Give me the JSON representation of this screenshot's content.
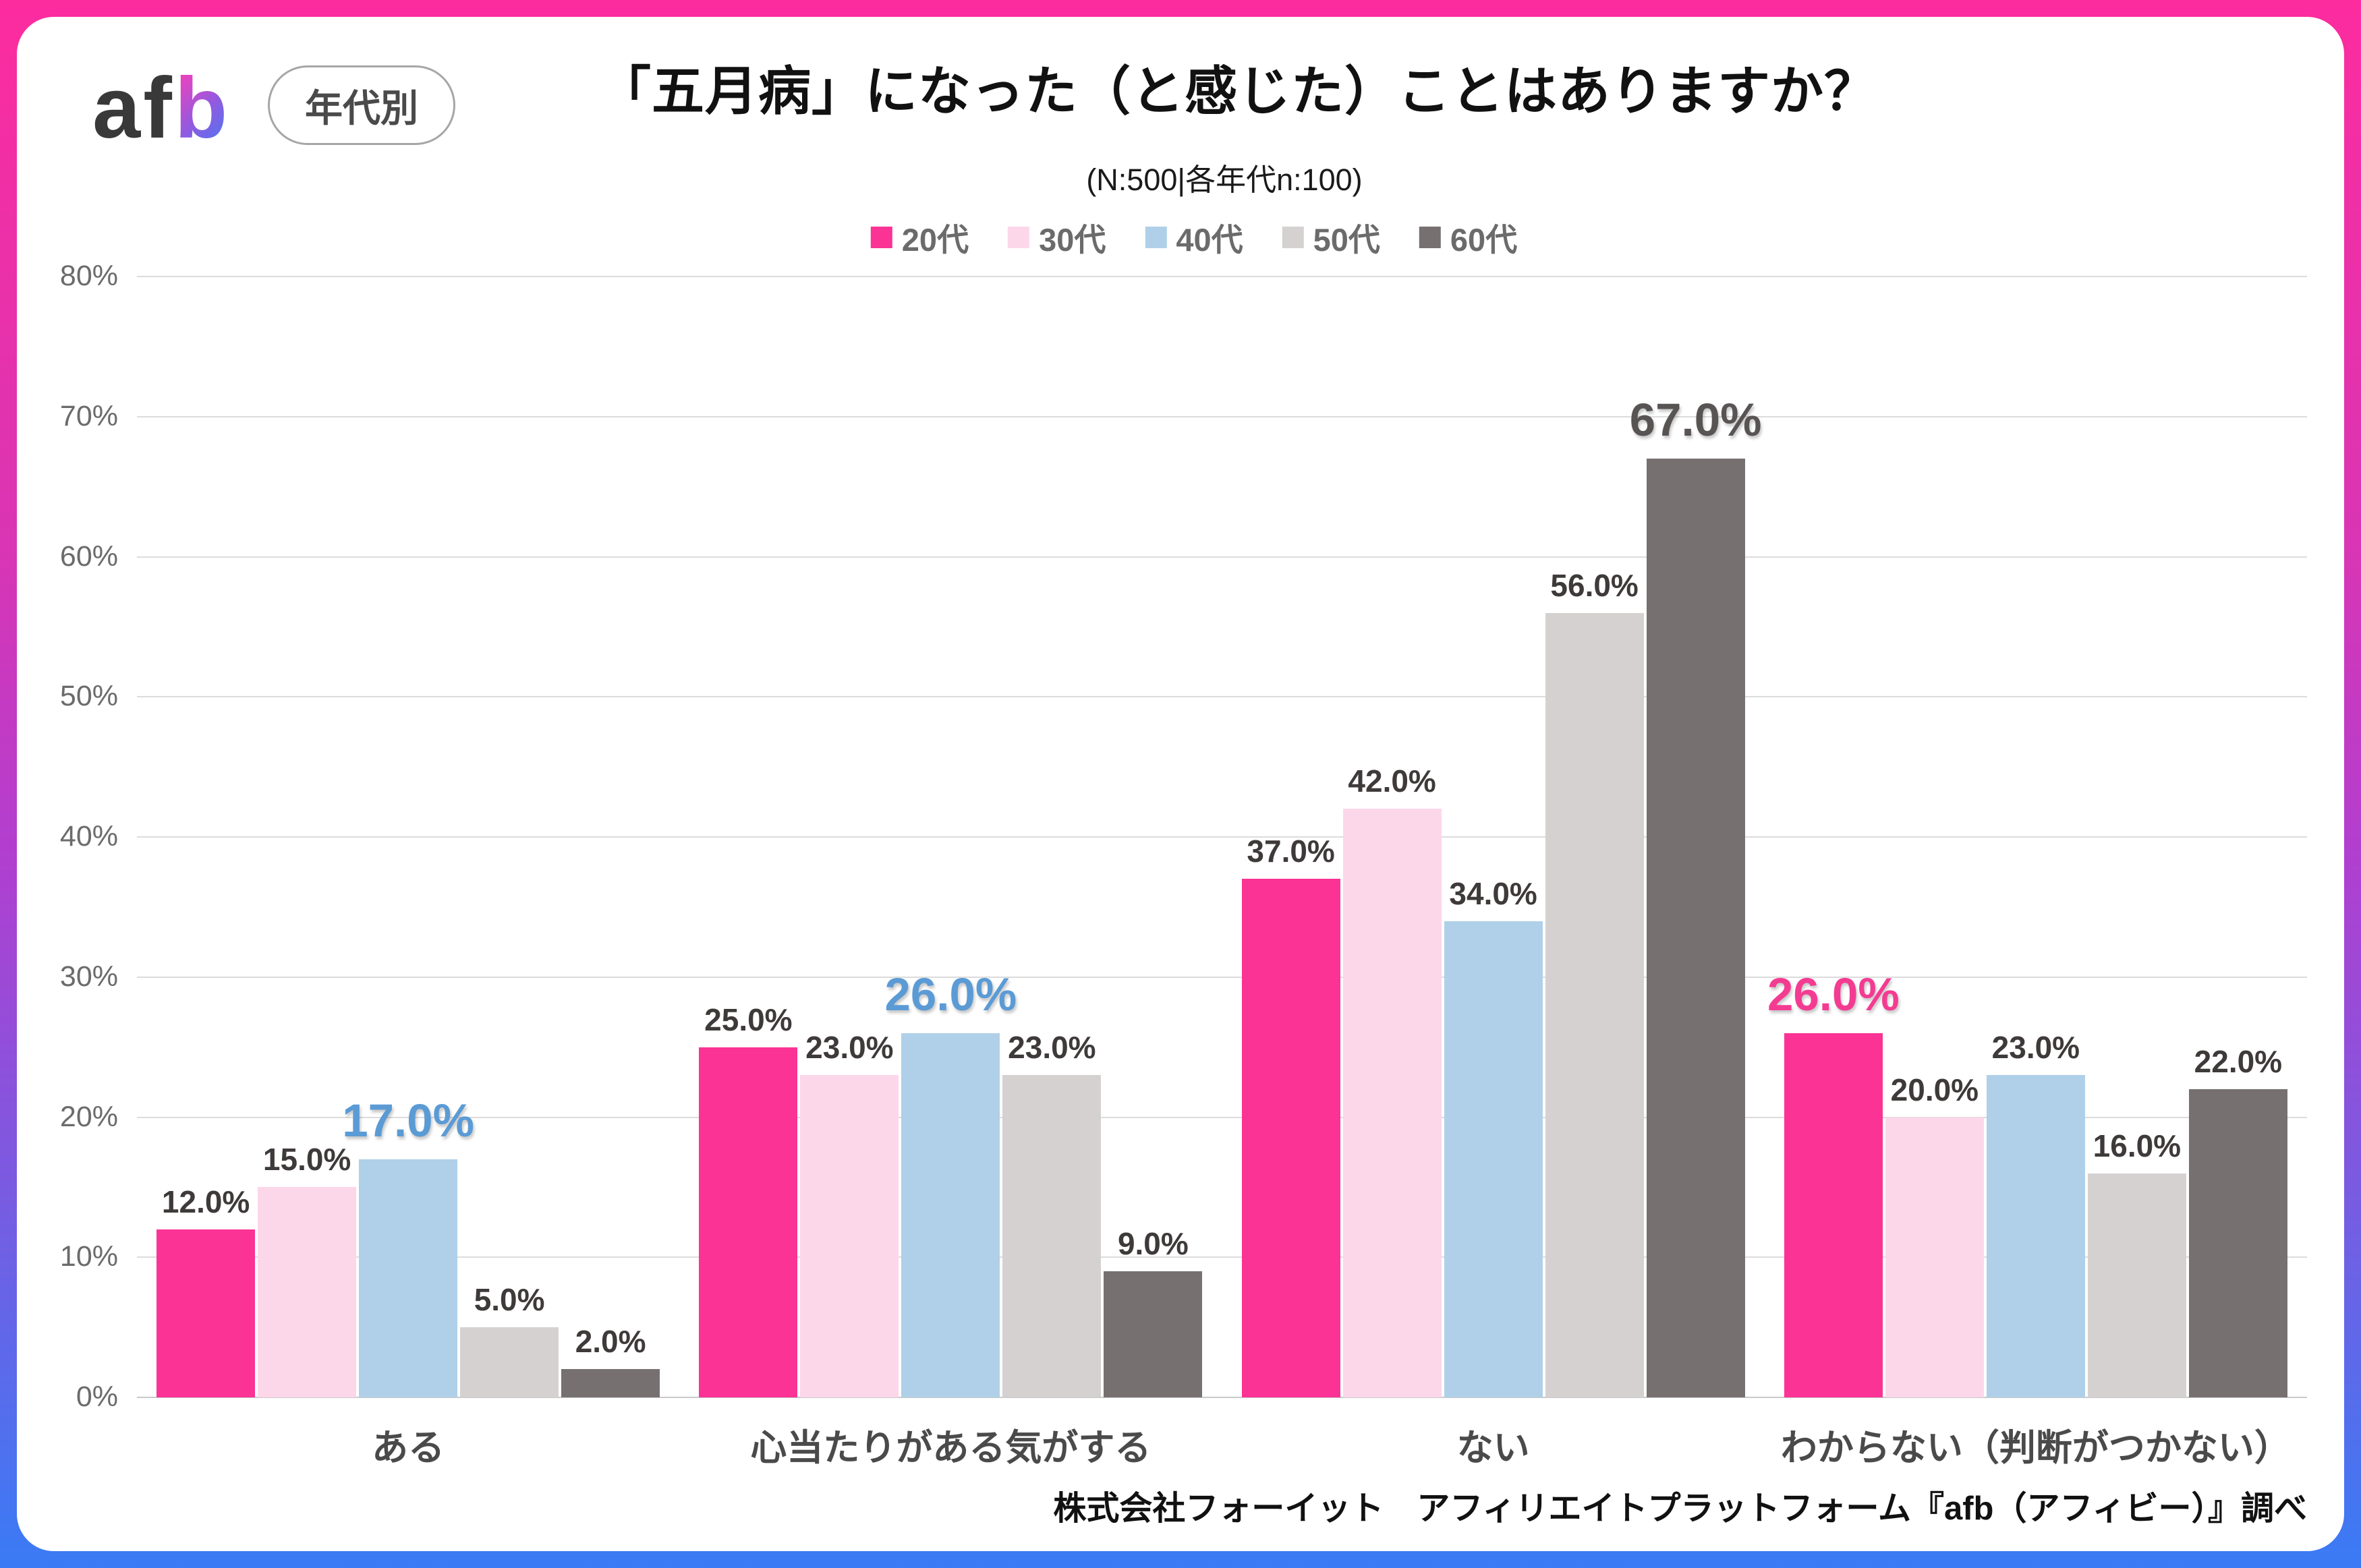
{
  "header": {
    "logo": "afb",
    "logo_prefix": "af",
    "logo_suffix": "b",
    "badge": "年代別",
    "title": "「五月病」になった（と感じた）ことはありますか？",
    "subtitle": "(N:500|各年代n:100)"
  },
  "source": "株式会社フォーイット　アフィリエイトプラットフォーム『afb（アフィビー）』調べ",
  "chart_data": {
    "type": "bar",
    "title": "「五月病」になった（と感じた）ことはありますか？",
    "subtitle": "(N:500|各年代n:100)",
    "categories": [
      "ある",
      "心当たりがある気がする",
      "ない",
      "わからない（判断がつかない）"
    ],
    "series": [
      {
        "name": "20代",
        "color": "#fa3394",
        "values": [
          12.0,
          25.0,
          37.0,
          26.0
        ]
      },
      {
        "name": "30代",
        "color": "#fcd7ea",
        "values": [
          15.0,
          23.0,
          42.0,
          20.0
        ]
      },
      {
        "name": "40代",
        "color": "#afd0e8",
        "values": [
          17.0,
          26.0,
          34.0,
          23.0
        ]
      },
      {
        "name": "50代",
        "color": "#d5d1d1",
        "values": [
          5.0,
          23.0,
          56.0,
          16.0
        ]
      },
      {
        "name": "60代",
        "color": "#767070",
        "values": [
          2.0,
          9.0,
          67.0,
          22.0
        ]
      }
    ],
    "value_labels": [
      [
        "12.0%",
        "25.0%",
        "37.0%",
        "26.0%"
      ],
      [
        "15.0%",
        "23.0%",
        "42.0%",
        "20.0%"
      ],
      [
        "17.0%",
        "26.0%",
        "34.0%",
        "23.0%"
      ],
      [
        "5.0%",
        "23.0%",
        "56.0%",
        "16.0%"
      ],
      [
        "2.0%",
        "9.0%",
        "67.0%",
        "22.0%"
      ]
    ],
    "highlights": [
      {
        "category_index": 0,
        "series_index": 2,
        "label": "17.0%",
        "color": "#5b9bd5"
      },
      {
        "category_index": 1,
        "series_index": 2,
        "label": "26.0%",
        "color": "#5b9bd5"
      },
      {
        "category_index": 2,
        "series_index": 4,
        "label": "67.0%",
        "color": "#595454"
      },
      {
        "category_index": 3,
        "series_index": 0,
        "label": "26.0%",
        "color": "#f43b92"
      }
    ],
    "ylim": [
      0,
      80
    ],
    "ytick_step": 10,
    "yticks": [
      "0%",
      "10%",
      "20%",
      "30%",
      "40%",
      "50%",
      "60%",
      "70%",
      "80%"
    ],
    "grid": true,
    "legend_position": "top",
    "xlabel": "",
    "ylabel": ""
  },
  "colors": {
    "frame_gradient_top": "#fc2c9e",
    "frame_gradient_mid": "#b03fd0",
    "frame_gradient_bottom": "#3a7bf5",
    "grid_line": "#dcdcdc",
    "axis_text": "#6b6b6b",
    "value_label": "#3f3a3a",
    "category_label": "#4a4a4a",
    "title_text": "#111111"
  }
}
